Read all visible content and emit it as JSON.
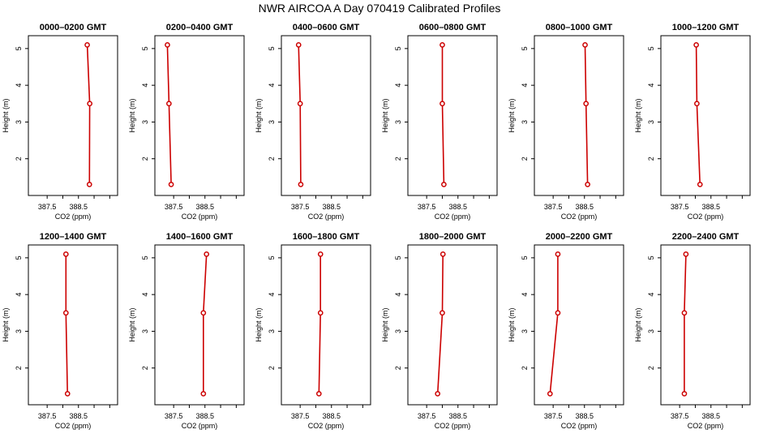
{
  "main_title": "NWR AIRCOA A  Day 070419  Calibrated Profiles",
  "chart_data": {
    "type": "line",
    "title": "NWR AIRCOA A  Day 070419  Calibrated Profiles",
    "xlabel": "CO2 (ppm)",
    "ylabel": "Height (m)",
    "xlim": [
      386.9,
      389.75
    ],
    "ylim": [
      1.0,
      5.35
    ],
    "xticks": [
      {
        "v": 387.5,
        "label": "387.5"
      },
      {
        "v": 388.0,
        "label": ""
      },
      {
        "v": 388.5,
        "label": "388.5"
      },
      {
        "v": 389.0,
        "label": ""
      },
      {
        "v": 389.5,
        "label": ""
      }
    ],
    "yticks": [
      {
        "v": 2,
        "label": "2"
      },
      {
        "v": 3,
        "label": "3"
      },
      {
        "v": 4,
        "label": "4"
      },
      {
        "v": 5,
        "label": "5"
      }
    ],
    "line_color": "#cc0000",
    "panels": [
      {
        "title": "0000–0200 GMT",
        "points": [
          {
            "co2": 388.85,
            "height": 1.3
          },
          {
            "co2": 388.86,
            "height": 3.5
          },
          {
            "co2": 388.78,
            "height": 5.1
          }
        ]
      },
      {
        "title": "0200–0400 GMT",
        "points": [
          {
            "co2": 387.42,
            "height": 1.3
          },
          {
            "co2": 387.35,
            "height": 3.5
          },
          {
            "co2": 387.3,
            "height": 5.1
          }
        ]
      },
      {
        "title": "0400–0600 GMT",
        "points": [
          {
            "co2": 387.52,
            "height": 1.3
          },
          {
            "co2": 387.5,
            "height": 3.5
          },
          {
            "co2": 387.45,
            "height": 5.1
          }
        ]
      },
      {
        "title": "0600–0800 GMT",
        "points": [
          {
            "co2": 388.05,
            "height": 1.3
          },
          {
            "co2": 388.0,
            "height": 3.5
          },
          {
            "co2": 388.0,
            "height": 5.1
          }
        ]
      },
      {
        "title": "0800–1000 GMT",
        "points": [
          {
            "co2": 388.6,
            "height": 1.3
          },
          {
            "co2": 388.55,
            "height": 3.5
          },
          {
            "co2": 388.52,
            "height": 5.1
          }
        ]
      },
      {
        "title": "1000–1200 GMT",
        "points": [
          {
            "co2": 388.15,
            "height": 1.3
          },
          {
            "co2": 388.05,
            "height": 3.5
          },
          {
            "co2": 388.03,
            "height": 5.1
          }
        ]
      },
      {
        "title": "1200–1400 GMT",
        "points": [
          {
            "co2": 388.15,
            "height": 1.3
          },
          {
            "co2": 388.1,
            "height": 3.5
          },
          {
            "co2": 388.1,
            "height": 5.1
          }
        ]
      },
      {
        "title": "1400–1600 GMT",
        "points": [
          {
            "co2": 388.45,
            "height": 1.3
          },
          {
            "co2": 388.45,
            "height": 3.5
          },
          {
            "co2": 388.55,
            "height": 5.1
          }
        ]
      },
      {
        "title": "1600–1800 GMT",
        "points": [
          {
            "co2": 388.1,
            "height": 1.3
          },
          {
            "co2": 388.15,
            "height": 3.5
          },
          {
            "co2": 388.15,
            "height": 5.1
          }
        ]
      },
      {
        "title": "1800–2000 GMT",
        "points": [
          {
            "co2": 387.85,
            "height": 1.3
          },
          {
            "co2": 388.0,
            "height": 3.5
          },
          {
            "co2": 388.02,
            "height": 5.1
          }
        ]
      },
      {
        "title": "2000–2200 GMT",
        "points": [
          {
            "co2": 387.4,
            "height": 1.3
          },
          {
            "co2": 387.65,
            "height": 3.5
          },
          {
            "co2": 387.65,
            "height": 5.1
          }
        ]
      },
      {
        "title": "2200–2400 GMT",
        "points": [
          {
            "co2": 387.65,
            "height": 1.3
          },
          {
            "co2": 387.65,
            "height": 3.5
          },
          {
            "co2": 387.7,
            "height": 5.1
          }
        ]
      }
    ]
  }
}
